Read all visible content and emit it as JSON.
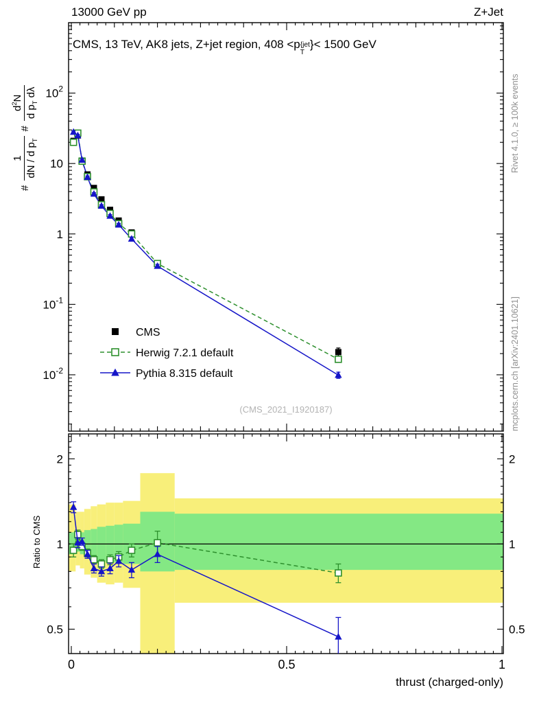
{
  "header": {
    "left": "13000 GeV pp",
    "right": "Z+Jet"
  },
  "side": {
    "top": "Rivet 4.1.0, ≥ 100k events",
    "bottom": "mcplots.cern.ch [arXiv:2401.10621]"
  },
  "main": {
    "watermark": "(CMS_2021_I1920187)"
  },
  "ratio": {
    "ylabel": "Ratio to CMS"
  },
  "axes": {
    "xlabel": "thrust (charged-only)",
    "xticks": [
      {
        "v": 0,
        "label": "0"
      },
      {
        "v": 0.5,
        "label": "0.5"
      },
      {
        "v": 1,
        "label": "1"
      }
    ],
    "main_yticks": [
      {
        "v": 0.01,
        "label": "10",
        "exp": "-2"
      },
      {
        "v": 0.1,
        "label": "10",
        "exp": "-1"
      },
      {
        "v": 1,
        "label": "1"
      },
      {
        "v": 10,
        "label": "10"
      },
      {
        "v": 100,
        "label": "10",
        "exp": "2"
      }
    ],
    "ratio_yticks": [
      {
        "v": 0.5,
        "label": "0.5"
      },
      {
        "v": 1,
        "label": "1"
      },
      {
        "v": 2,
        "label": "2"
      }
    ]
  },
  "title_rich": [
    {
      "t": "CMS, 13 TeV, AK8 jets, Z+jet region, 408 <p"
    },
    {
      "stack": {
        "top": "{jet",
        "bottom": "T"
      }
    },
    {
      "t": "}< 1500 GeV"
    }
  ],
  "ylabel_rich": [
    {
      "t": "#"
    },
    {
      "frac": {
        "num": [
          {
            "t": "1"
          }
        ],
        "den": [
          {
            "t": "dN / d p"
          },
          {
            "t": "T",
            "sub": true
          }
        ]
      }
    },
    {
      "t": "#"
    },
    {
      "frac": {
        "num": [
          {
            "t": "d"
          },
          {
            "t": "2",
            "sup": true
          },
          {
            "t": "N"
          }
        ],
        "den": [
          {
            "t": "d p"
          },
          {
            "t": "T",
            "sub": true
          },
          {
            "t": " dλ"
          }
        ]
      }
    }
  ],
  "chart_data": {
    "type": "line",
    "title": "CMS, 13 TeV, AK8 jets, Z+jet region, 408 <pT^{jet}< 1500 GeV",
    "xlabel": "thrust (charged-only)",
    "ylabel": "# 1/(dN/dpT) # d2N/(dpT dlambda)",
    "xlim": [
      0,
      1
    ],
    "main_ylim_log10": [
      -2.8,
      3.0
    ],
    "ratio_ylim": [
      0.41,
      2.45
    ],
    "x": [
      0.005,
      0.015,
      0.025,
      0.0375,
      0.0525,
      0.07,
      0.09,
      0.11,
      0.14,
      0.2,
      0.62
    ],
    "series": [
      {
        "name": "CMS",
        "color": "#000000",
        "marker": "square-filled",
        "line": "none",
        "values": [
          21,
          25,
          11,
          7.0,
          4.5,
          3.1,
          2.2,
          1.55,
          1.05,
          0.38,
          0.021
        ],
        "yerr": [
          1.3,
          1.5,
          0.6,
          0.4,
          0.25,
          0.18,
          0.13,
          0.1,
          0.07,
          0.03,
          0.003
        ]
      },
      {
        "name": "Herwig 7.2.1 default",
        "color": "#2d8f2d",
        "marker": "square-open",
        "line": "dashed",
        "values": [
          20,
          27,
          10.8,
          6.5,
          3.95,
          2.6,
          1.95,
          1.4,
          1.0,
          0.38,
          0.0166
        ],
        "yerr": [
          0.8,
          1.0,
          0.4,
          0.25,
          0.15,
          0.1,
          0.08,
          0.06,
          0.05,
          0.035,
          0.0015
        ],
        "ratio": [
          0.95,
          1.08,
          0.98,
          0.93,
          0.88,
          0.85,
          0.88,
          0.9,
          0.95,
          1.01,
          0.79
        ],
        "ratio_err": [
          0.05,
          0.04,
          0.03,
          0.03,
          0.03,
          0.03,
          0.035,
          0.04,
          0.05,
          0.1,
          0.06
        ]
      },
      {
        "name": "Pythia 8.315 default",
        "color": "#1515c8",
        "marker": "triangle-filled",
        "line": "solid",
        "values": [
          28,
          25,
          11.2,
          6.4,
          3.7,
          2.5,
          1.8,
          1.35,
          0.85,
          0.35,
          0.0099
        ],
        "yerr": [
          1.0,
          1.0,
          0.4,
          0.25,
          0.15,
          0.1,
          0.08,
          0.06,
          0.05,
          0.02,
          0.001
        ],
        "ratio": [
          1.35,
          1.01,
          1.02,
          0.92,
          0.82,
          0.8,
          0.82,
          0.87,
          0.81,
          0.92,
          0.47
        ],
        "ratio_err": [
          0.06,
          0.04,
          0.03,
          0.03,
          0.03,
          0.03,
          0.035,
          0.04,
          0.05,
          0.06,
          0.08
        ]
      }
    ],
    "bands": {
      "yellow_color": "#f8ef7a",
      "green_color": "#84e884",
      "bins": [
        [
          0,
          0.01
        ],
        [
          0.01,
          0.02
        ],
        [
          0.02,
          0.03
        ],
        [
          0.03,
          0.045
        ],
        [
          0.045,
          0.06
        ],
        [
          0.06,
          0.08
        ],
        [
          0.08,
          0.1
        ],
        [
          0.1,
          0.12
        ],
        [
          0.12,
          0.16
        ],
        [
          0.16,
          0.24
        ],
        [
          0.24,
          1.0
        ]
      ],
      "yellow": [
        [
          0.8,
          1.38
        ],
        [
          0.84,
          1.3
        ],
        [
          0.82,
          1.3
        ],
        [
          0.78,
          1.33
        ],
        [
          0.76,
          1.36
        ],
        [
          0.73,
          1.38
        ],
        [
          0.72,
          1.4
        ],
        [
          0.73,
          1.4
        ],
        [
          0.7,
          1.42
        ],
        [
          0.35,
          1.78
        ],
        [
          0.62,
          1.45
        ]
      ],
      "green": [
        [
          0.92,
          1.1
        ],
        [
          0.94,
          1.08
        ],
        [
          0.92,
          1.1
        ],
        [
          0.9,
          1.12
        ],
        [
          0.89,
          1.13
        ],
        [
          0.87,
          1.15
        ],
        [
          0.86,
          1.16
        ],
        [
          0.86,
          1.17
        ],
        [
          0.85,
          1.18
        ],
        [
          0.8,
          1.3
        ],
        [
          0.81,
          1.28
        ]
      ]
    },
    "legend_position": "center-left"
  }
}
